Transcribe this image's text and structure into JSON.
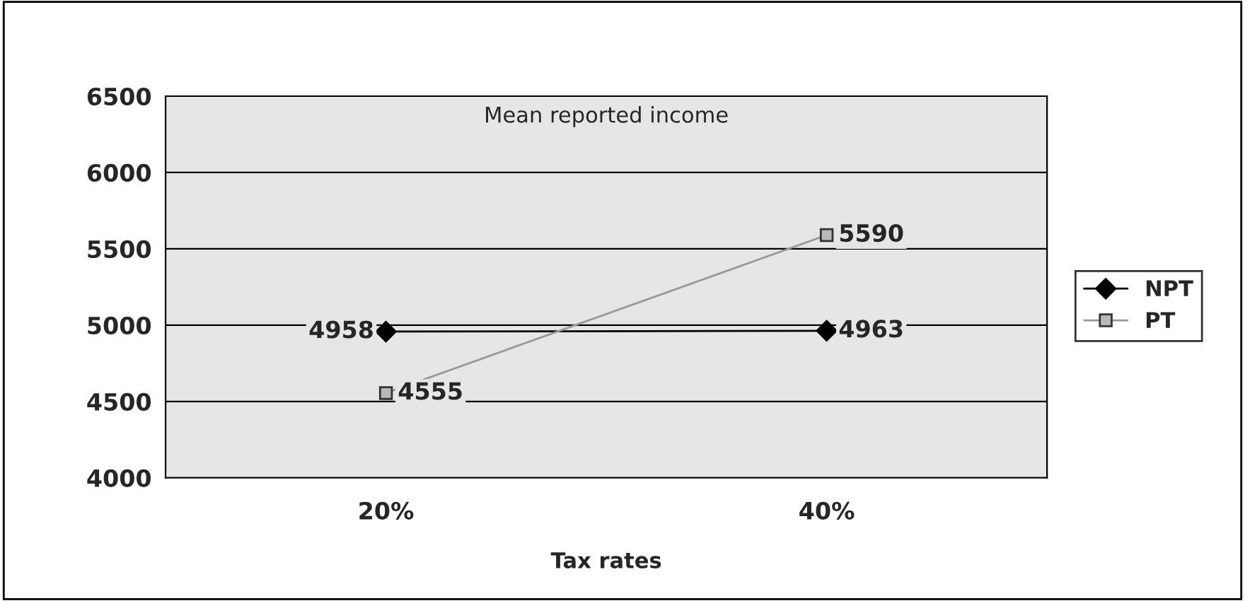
{
  "chart_data": {
    "type": "line",
    "title": "Mean reported income",
    "xlabel": "Tax rates",
    "categories": [
      "20%",
      "40%"
    ],
    "series": [
      {
        "name": "NPT",
        "color": "#000000",
        "values": [
          4958,
          4963
        ],
        "marker": "diamond"
      },
      {
        "name": "PT",
        "color": "#999999",
        "values": [
          4555,
          5590
        ],
        "marker": "square"
      }
    ],
    "ylim": [
      4000,
      6500
    ],
    "yticks": [
      4000,
      4500,
      5000,
      5500,
      6000,
      6500
    ],
    "grid": "y",
    "legend": "right",
    "data_labels": true
  }
}
